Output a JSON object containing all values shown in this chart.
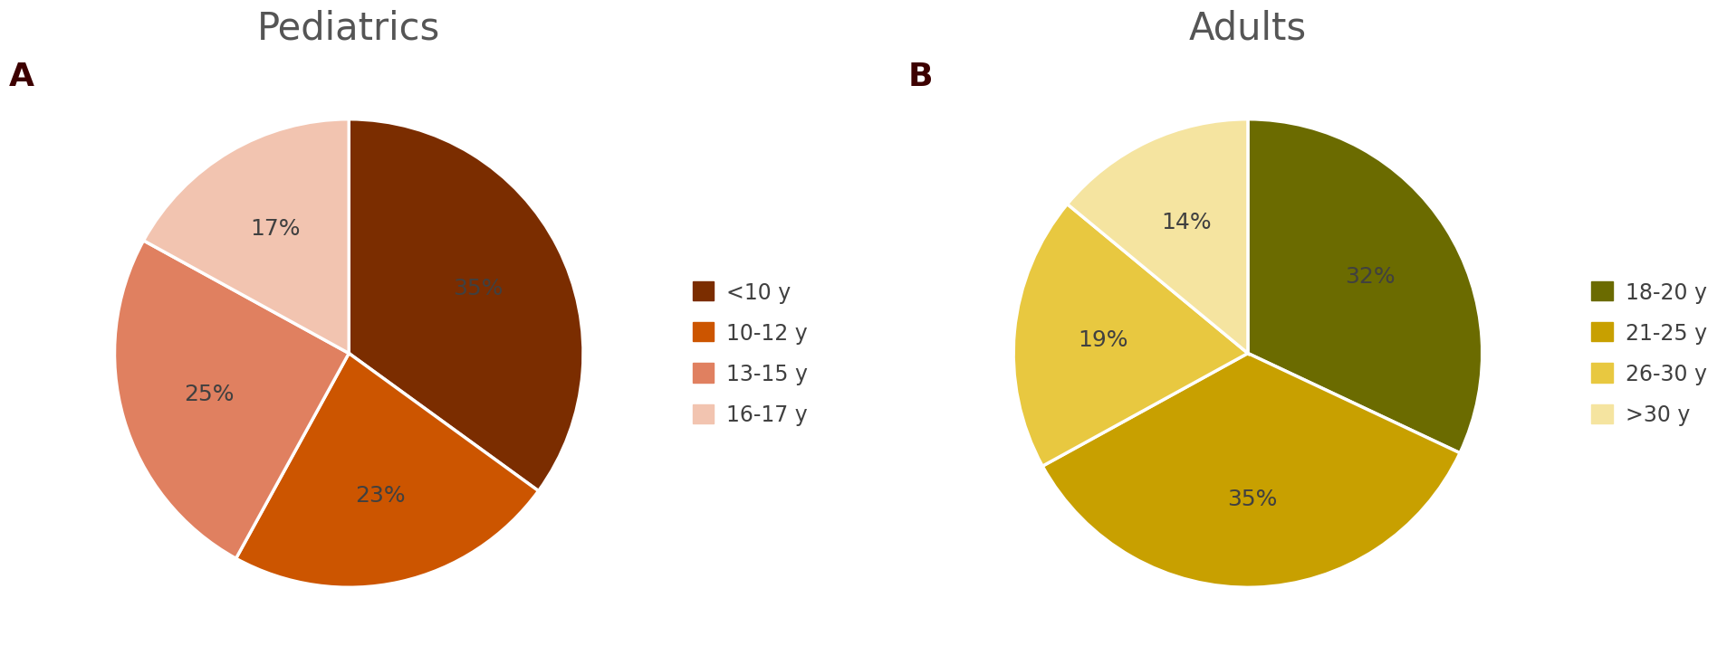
{
  "pediatrics": {
    "title": "Pediatrics",
    "panel_label": "A",
    "values": [
      35,
      23,
      25,
      17
    ],
    "labels": [
      "35%",
      "23%",
      "25%",
      "17%"
    ],
    "legend_labels": [
      "<10 y",
      "10-12 y",
      "13-15 y",
      "16-17 y"
    ],
    "colors": [
      "#7B2D00",
      "#CC5500",
      "#E08060",
      "#F2C4B0"
    ],
    "startangle": 90
  },
  "adults": {
    "title": "Adults",
    "panel_label": "B",
    "values": [
      32,
      35,
      19,
      14
    ],
    "labels": [
      "32%",
      "35%",
      "19%",
      "14%"
    ],
    "legend_labels": [
      "18-20 y",
      "21-25 y",
      "26-30 y",
      ">30 y"
    ],
    "colors": [
      "#6B6B00",
      "#C8A000",
      "#E8C840",
      "#F5E4A0"
    ],
    "startangle": 90
  },
  "title_fontsize": 30,
  "label_fontsize": 18,
  "legend_fontsize": 17,
  "panel_label_fontsize": 26,
  "panel_label_color": "#3D0000",
  "title_color": "#555555",
  "label_color": "#404040"
}
